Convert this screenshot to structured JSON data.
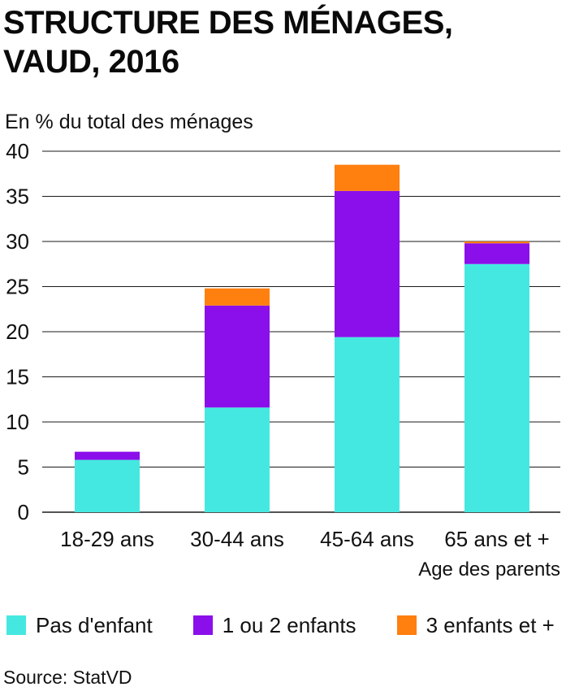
{
  "title_lines": [
    "STRUCTURE DES MÉNAGES,",
    "VAUD, 2016"
  ],
  "subtitle": "En % du total des ménages",
  "source": {
    "label": "Source:",
    "value": "StatVD"
  },
  "chart_data": {
    "type": "bar",
    "stacked": true,
    "categories": [
      "18-29 ans",
      "30-44 ans",
      "45-64 ans",
      "65 ans et +"
    ],
    "xlabel": "Age des parents",
    "ylabel": "En % du total des ménages",
    "ylim": [
      0,
      40
    ],
    "yticks": [
      0,
      5,
      10,
      15,
      20,
      25,
      30,
      35,
      40
    ],
    "grid": true,
    "legend_position": "bottom",
    "series": [
      {
        "name": "Pas d'enfant",
        "color": "#45E8E0",
        "values": [
          5.8,
          11.6,
          19.4,
          27.5
        ]
      },
      {
        "name": "1 ou 2 enfants",
        "color": "#8B0FEA",
        "values": [
          0.9,
          11.3,
          16.2,
          2.3
        ]
      },
      {
        "name": "3 enfants et +",
        "color": "#FF7F0F",
        "values": [
          0.0,
          1.9,
          2.9,
          0.2
        ]
      }
    ]
  }
}
